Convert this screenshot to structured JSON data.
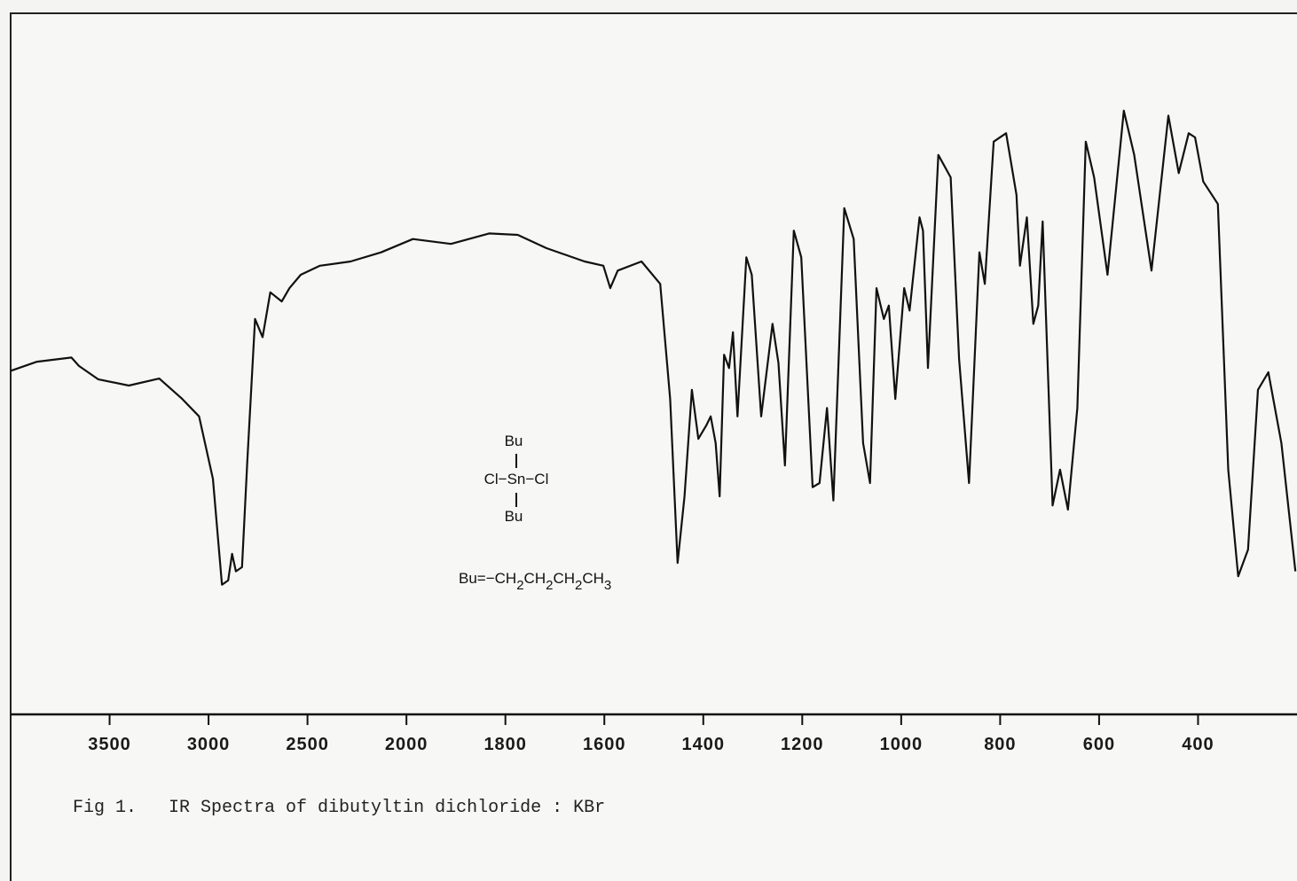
{
  "chart_data": {
    "type": "line",
    "caption": "Fig 1.   IR Spectra of dibutyltin dichloride : KBr",
    "structure": {
      "top": "Bu",
      "middle": "Cl−Sn−Cl",
      "bottom": "Bu",
      "formula": [
        "Bu=−CH",
        "2",
        "CH",
        "2",
        "CH",
        "2",
        "CH",
        "3"
      ]
    },
    "color": "#111111",
    "xlim": [
      4000,
      210
    ],
    "ylim": [
      0,
      100
    ],
    "xticks": [
      3500,
      3000,
      2500,
      2000,
      1800,
      1600,
      1400,
      1200,
      1000,
      800,
      600,
      400
    ],
    "x": [
      4000,
      3867,
      3693,
      3655,
      3558,
      3403,
      3249,
      3133,
      3048,
      2978,
      2932,
      2901,
      2881,
      2862,
      2831,
      2804,
      2765,
      2727,
      2688,
      2630,
      2591,
      2534,
      2437,
      2282,
      2128,
      1987,
      1910,
      1833,
      1775,
      1717,
      1640,
      1602,
      1588,
      1573,
      1525,
      1487,
      1467,
      1452,
      1438,
      1423,
      1410,
      1394,
      1385,
      1375,
      1367,
      1358,
      1348,
      1340,
      1331,
      1313,
      1302,
      1283,
      1260,
      1248,
      1235,
      1217,
      1202,
      1179,
      1165,
      1150,
      1137,
      1115,
      1096,
      1077,
      1063,
      1050,
      1035,
      1025,
      1012,
      994,
      983,
      963,
      956,
      946,
      925,
      900,
      883,
      863,
      842,
      831,
      813,
      788,
      767,
      760,
      746,
      733,
      723,
      714,
      694,
      679,
      663,
      644,
      627,
      610,
      583,
      550,
      529,
      494,
      460,
      439,
      419,
      406,
      390,
      362,
      342,
      323,
      304,
      285,
      265,
      240,
      213
    ],
    "values": [
      49.0,
      50.3,
      50.9,
      49.7,
      47.8,
      46.9,
      47.9,
      45.0,
      42.5,
      33.6,
      18.5,
      19.1,
      22.9,
      20.4,
      21.0,
      36.2,
      56.4,
      53.8,
      60.2,
      58.9,
      60.8,
      62.7,
      64.0,
      64.6,
      65.9,
      67.8,
      67.1,
      68.6,
      68.4,
      66.5,
      64.6,
      64.0,
      60.8,
      63.3,
      64.6,
      61.4,
      45.0,
      21.6,
      31.1,
      46.3,
      39.3,
      41.2,
      42.5,
      38.7,
      31.1,
      51.3,
      49.4,
      54.5,
      42.5,
      65.2,
      62.7,
      42.5,
      55.7,
      50.1,
      35.5,
      69.0,
      65.2,
      32.4,
      33.0,
      43.7,
      30.5,
      72.2,
      67.8,
      38.7,
      33.0,
      60.8,
      56.4,
      58.3,
      45.0,
      60.8,
      57.6,
      70.9,
      69.0,
      49.4,
      79.8,
      76.6,
      50.7,
      33.0,
      65.9,
      61.4,
      81.7,
      82.9,
      74.1,
      64.0,
      70.9,
      55.7,
      58.3,
      70.3,
      29.8,
      34.9,
      29.2,
      43.7,
      81.7,
      76.6,
      62.7,
      86.1,
      79.8,
      63.3,
      85.4,
      77.2,
      82.9,
      82.3,
      76.0,
      72.8,
      34.9,
      19.7,
      23.5,
      46.3,
      48.8,
      38.7,
      20.4
    ]
  }
}
